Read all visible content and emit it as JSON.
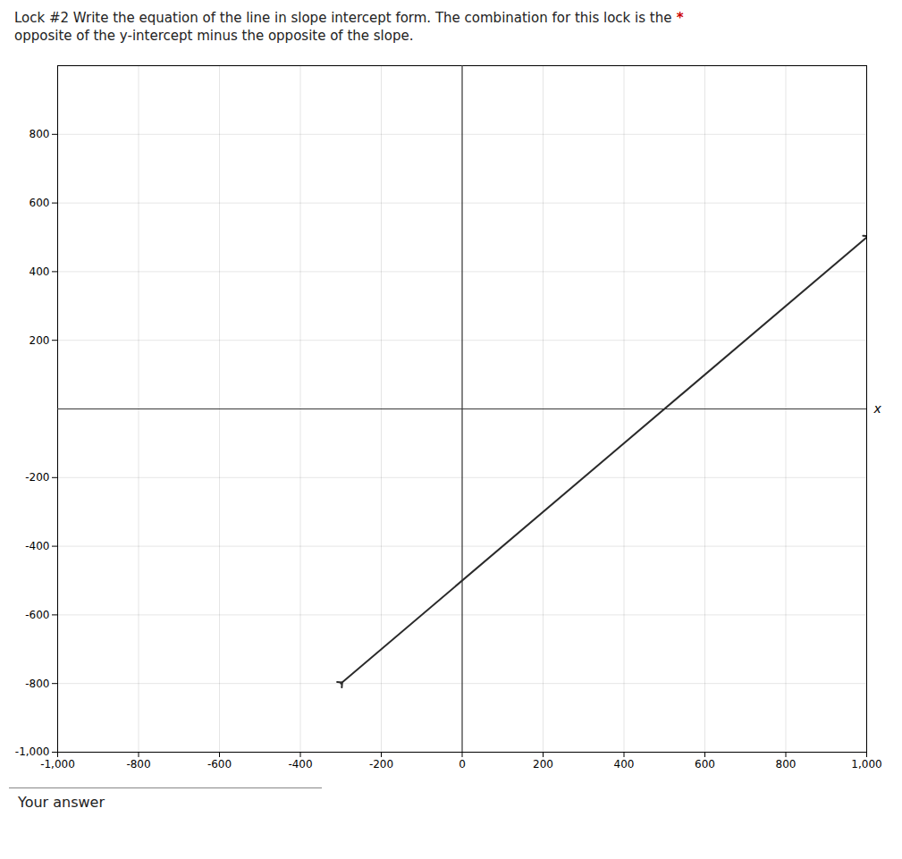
{
  "chart_data": {
    "type": "line",
    "title": "Lock #2 Write the equation of the line in slope intercept form. The combination for this lock is the",
    "subtitle": "opposite of the y-intercept minus the opposite of the slope.",
    "annotations": [
      {
        "text": "*",
        "color": "#cc0000"
      }
    ],
    "caption": "Your answer",
    "xlabel": "x",
    "x": [
      -300,
      1000
    ],
    "values": [
      -800,
      500
    ],
    "color": "#2a2a2a",
    "marker": "arrow",
    "xlim": [
      -1000,
      1000
    ],
    "ylim": [
      -1000,
      1000
    ],
    "xticks": [
      {
        "value": -1000,
        "label": "-1,000"
      },
      -800,
      -600,
      -400,
      -200,
      0,
      200,
      400,
      600,
      800,
      {
        "value": 1000,
        "label": "1,000"
      }
    ],
    "yticks": [
      {
        "value": -1000,
        "label": "-1,000"
      },
      -800,
      -600,
      -400,
      -200,
      200,
      400,
      600,
      800
    ],
    "grid": true
  }
}
